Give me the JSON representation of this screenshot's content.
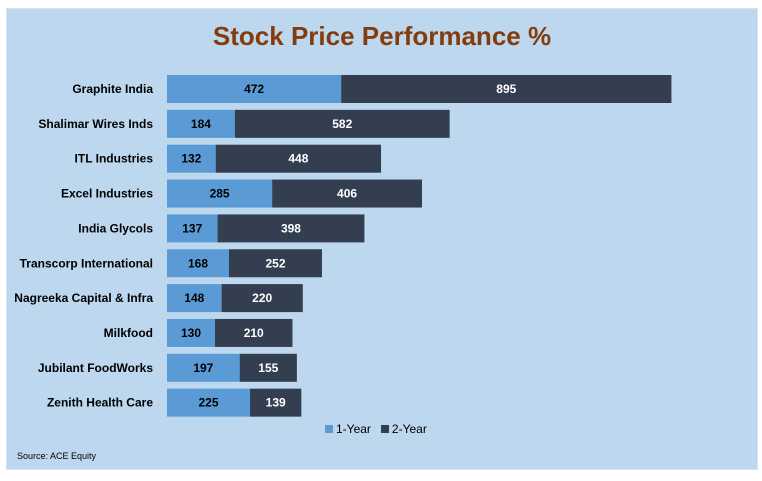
{
  "chart_data": {
    "type": "bar",
    "orientation": "horizontal",
    "stacked": true,
    "title": "Stock Price Performance %",
    "categories": [
      "Graphite India",
      "Shalimar Wires Inds",
      "ITL Industries",
      "Excel Industries",
      "India Glycols",
      "Transcorp International",
      "Nagreeka Capital & Infra",
      "Milkfood",
      "Jubilant FoodWorks",
      "Zenith Health Care"
    ],
    "series": [
      {
        "name": "1-Year",
        "color": "#5b9bd5",
        "label_color": "#000000",
        "values": [
          472,
          184,
          132,
          285,
          137,
          168,
          148,
          130,
          197,
          225
        ]
      },
      {
        "name": "2-Year",
        "color": "#333f50",
        "label_color": "#ffffff",
        "values": [
          895,
          582,
          448,
          406,
          398,
          252,
          220,
          210,
          155,
          139
        ]
      }
    ],
    "xlim": [
      0,
      1400
    ],
    "grid": false,
    "legend": "bottom",
    "data_labels": true
  },
  "source": "Source: ACE Equity"
}
